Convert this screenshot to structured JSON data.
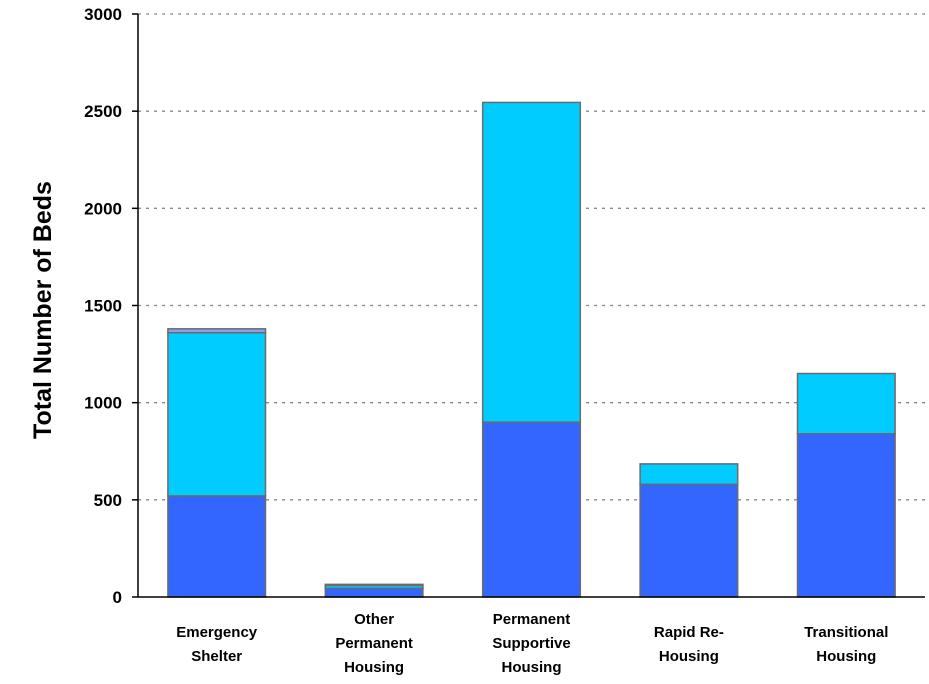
{
  "chart_data": {
    "type": "bar",
    "stacked": true,
    "categories": [
      [
        "Emergency",
        "Shelter"
      ],
      [
        "Other",
        "Permanent",
        "Housing"
      ],
      [
        "Permanent",
        "Supportive",
        "Housing"
      ],
      [
        "Rapid Re-",
        "Housing"
      ],
      [
        "Transitional",
        "Housing"
      ]
    ],
    "series": [
      {
        "color": "#3366ff",
        "values": [
          520,
          45,
          900,
          580,
          840
        ]
      },
      {
        "color": "#00ccff",
        "values": [
          840,
          15,
          1645,
          105,
          310
        ]
      },
      {
        "color": "#8fa0e8",
        "values": [
          20,
          5,
          0,
          0,
          0
        ]
      }
    ],
    "title": "",
    "xlabel": "",
    "ylabel": "Total Number of Beds",
    "ylim": [
      0,
      3000
    ],
    "yticks": [
      0,
      500,
      1000,
      1500,
      2000,
      2500,
      3000
    ],
    "grid": true,
    "legend": "none"
  }
}
